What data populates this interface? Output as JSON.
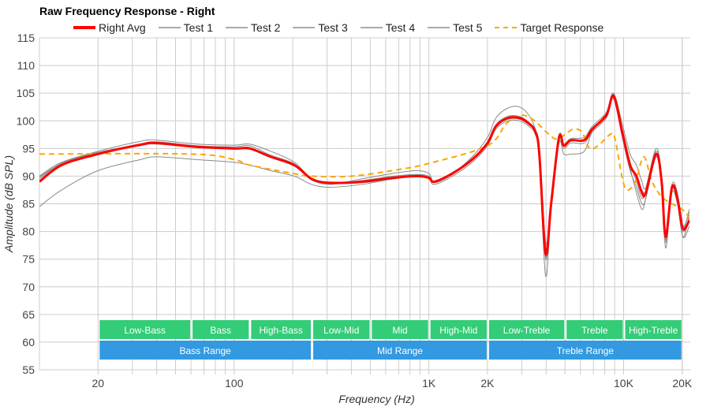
{
  "chart_data": {
    "type": "line",
    "title": "Raw Frequency Response - Right",
    "xlabel": "Frequency (Hz)",
    "ylabel": "Amplitude (dB SPL)",
    "xscale": "log",
    "xlim": [
      10,
      22000
    ],
    "ylim": [
      55,
      115
    ],
    "yticks": [
      55,
      60,
      65,
      70,
      75,
      80,
      85,
      90,
      95,
      100,
      105,
      110,
      115
    ],
    "xticks": [
      {
        "v": 20,
        "label": "20"
      },
      {
        "v": 100,
        "label": "100"
      },
      {
        "v": 1000,
        "label": "1K"
      },
      {
        "v": 2000,
        "label": "2K"
      },
      {
        "v": 10000,
        "label": "10K"
      },
      {
        "v": 20000,
        "label": "20K"
      }
    ],
    "grid": true,
    "legend_position": "top",
    "x": [
      10,
      13,
      20,
      33,
      40,
      64,
      100,
      120,
      154,
      204,
      250,
      311,
      452,
      656,
      868,
      1000,
      1067,
      1321,
      1668,
      2000,
      2208,
      2540,
      2924,
      3267,
      3523,
      3691,
      3976,
      4245,
      4659,
      4930,
      5360,
      6282,
      6900,
      8154,
      8876,
      9840,
      10800,
      11640,
      12420,
      13010,
      14690,
      15680,
      16440,
      17710,
      18890,
      20180,
      21730
    ],
    "series": [
      {
        "name": "Test 1",
        "color": "#8a8a8a",
        "values": [
          84.5,
          87.5,
          91,
          93,
          93.5,
          93,
          92.5,
          92,
          91,
          90,
          88.5,
          88,
          88.5,
          89.5,
          90,
          89.5,
          88.5,
          90,
          92.5,
          95.5,
          98.5,
          100,
          100,
          99,
          97.5,
          93,
          72,
          84,
          97,
          95,
          96,
          96,
          98,
          100.5,
          104,
          97,
          91,
          88,
          85,
          86,
          93.5,
          88,
          78,
          87,
          85,
          79,
          83
        ]
      },
      {
        "name": "Test 2",
        "color": "#8a8a8a",
        "values": [
          90,
          92.5,
          94.5,
          96.3,
          96.5,
          95.8,
          95.6,
          95.8,
          94.5,
          92.5,
          89.5,
          88.5,
          89.5,
          90.5,
          91,
          90.5,
          89,
          90.5,
          93.5,
          97,
          100.5,
          102.3,
          102.5,
          101,
          98.5,
          95,
          78,
          84.5,
          96,
          94,
          94,
          94.5,
          98,
          101.5,
          105,
          99.5,
          94,
          92,
          89,
          88,
          95,
          90,
          80,
          88.5,
          87,
          81,
          83.5
        ]
      },
      {
        "name": "Test 3",
        "color": "#8a8a8a",
        "values": [
          90,
          92.5,
          94.3,
          95.8,
          96.2,
          95.5,
          95.3,
          95.5,
          93.8,
          92.2,
          89.3,
          88.7,
          89.2,
          90,
          90.3,
          90,
          88.8,
          90.3,
          93,
          96.2,
          99.3,
          100.8,
          100.8,
          99.7,
          98.3,
          94.5,
          75,
          85.5,
          97.3,
          95.8,
          96.8,
          97,
          99,
          101.5,
          104.8,
          98.5,
          92.5,
          89,
          86,
          87.5,
          94.5,
          89.5,
          77,
          87.5,
          85.5,
          79,
          81
        ]
      },
      {
        "name": "Test 4",
        "color": "#8a8a8a",
        "values": [
          89.5,
          92.3,
          94.2,
          95.6,
          96,
          95.3,
          95,
          95.2,
          93.5,
          92,
          89.3,
          88.6,
          89,
          89.8,
          90.2,
          89.8,
          88.9,
          90.5,
          93.2,
          96,
          99,
          100.3,
          100.3,
          99.3,
          98,
          94,
          76.5,
          85,
          97,
          95.5,
          96.3,
          96.7,
          98.5,
          101,
          104.2,
          98,
          91.5,
          87,
          84,
          86,
          93.8,
          88.5,
          78.5,
          87.5,
          85.5,
          80,
          82.5
        ]
      },
      {
        "name": "Test 5",
        "color": "#8a8a8a",
        "values": [
          89.8,
          92.2,
          94,
          95.5,
          95.8,
          95.2,
          95,
          95,
          93.4,
          91.8,
          89.4,
          88.7,
          88.8,
          89.5,
          90,
          89.6,
          88.9,
          90.4,
          93,
          96,
          99,
          100.5,
          100.4,
          99.4,
          97.8,
          94.2,
          75.5,
          84.8,
          97,
          95.6,
          96.5,
          96.5,
          98.5,
          101.2,
          104.5,
          98,
          92,
          90,
          87.5,
          87.5,
          94.2,
          89,
          79.5,
          88,
          86,
          80.5,
          84
        ]
      },
      {
        "name": "Right Avg",
        "color": "#ff0000",
        "values": [
          89,
          92,
          94,
          95.7,
          96,
          95.3,
          95,
          95,
          93.5,
          92,
          89.5,
          88.8,
          89,
          89.7,
          90,
          89.7,
          89,
          90.5,
          93,
          96,
          99,
          100.5,
          100.5,
          99.5,
          98,
          94,
          76,
          85,
          97,
          95.5,
          96.5,
          96.5,
          98.5,
          101,
          104.5,
          98,
          92,
          90,
          87,
          87,
          94,
          89,
          79,
          88,
          86,
          80.5,
          82
        ]
      }
    ],
    "target": {
      "name": "Target Response",
      "color": "#ffa500",
      "x": [
        10,
        60,
        100,
        120,
        200,
        250,
        400,
        700,
        1000,
        2000,
        2500,
        3000,
        3500,
        4000,
        4500,
        5000,
        5500,
        6100,
        6700,
        7500,
        8500,
        9000,
        9800,
        10400,
        11500,
        12700,
        14000,
        16000,
        20000,
        21700
      ],
      "values": [
        94,
        94,
        93,
        92,
        90.5,
        90,
        90,
        91.2,
        92.3,
        95.5,
        99.5,
        101,
        100,
        98,
        96.7,
        97.5,
        98.5,
        98,
        95,
        95.7,
        97.5,
        97,
        90,
        87.5,
        89,
        93.5,
        89,
        86,
        84,
        82.5
      ]
    },
    "bands": [
      {
        "label": "Low-Bass",
        "from": 20,
        "to": 60,
        "row": 1,
        "color": "#33cc77"
      },
      {
        "label": "Bass",
        "from": 60,
        "to": 120,
        "row": 1,
        "color": "#33cc77"
      },
      {
        "label": "High-Bass",
        "from": 120,
        "to": 250,
        "row": 1,
        "color": "#33cc77"
      },
      {
        "label": "Low-Mid",
        "from": 250,
        "to": 500,
        "row": 1,
        "color": "#33cc77"
      },
      {
        "label": "Mid",
        "from": 500,
        "to": 1000,
        "row": 1,
        "color": "#33cc77"
      },
      {
        "label": "High-Mid",
        "from": 1000,
        "to": 2000,
        "row": 1,
        "color": "#33cc77"
      },
      {
        "label": "Low-Treble",
        "from": 2000,
        "to": 5000,
        "row": 1,
        "color": "#33cc77"
      },
      {
        "label": "Treble",
        "from": 5000,
        "to": 10000,
        "row": 1,
        "color": "#33cc77"
      },
      {
        "label": "High-Treble",
        "from": 10000,
        "to": 20000,
        "row": 1,
        "color": "#33cc77"
      },
      {
        "label": "Bass Range",
        "from": 20,
        "to": 250,
        "row": 2,
        "color": "#3399e0"
      },
      {
        "label": "Mid Range",
        "from": 250,
        "to": 2000,
        "row": 2,
        "color": "#3399e0"
      },
      {
        "label": "Treble Range",
        "from": 2000,
        "to": 20000,
        "row": 2,
        "color": "#3399e0"
      }
    ]
  },
  "legend": [
    {
      "label": "Right Avg",
      "color": "#ff0000",
      "style": "thick"
    },
    {
      "label": "Test 1",
      "color": "#aaaaaa",
      "style": "thin"
    },
    {
      "label": "Test 2",
      "color": "#aaaaaa",
      "style": "thin"
    },
    {
      "label": "Test 3",
      "color": "#aaaaaa",
      "style": "thin"
    },
    {
      "label": "Test 4",
      "color": "#aaaaaa",
      "style": "thin"
    },
    {
      "label": "Test 5",
      "color": "#aaaaaa",
      "style": "thin"
    },
    {
      "label": "Target Response",
      "color": "#ffa500",
      "style": "dashed"
    }
  ]
}
